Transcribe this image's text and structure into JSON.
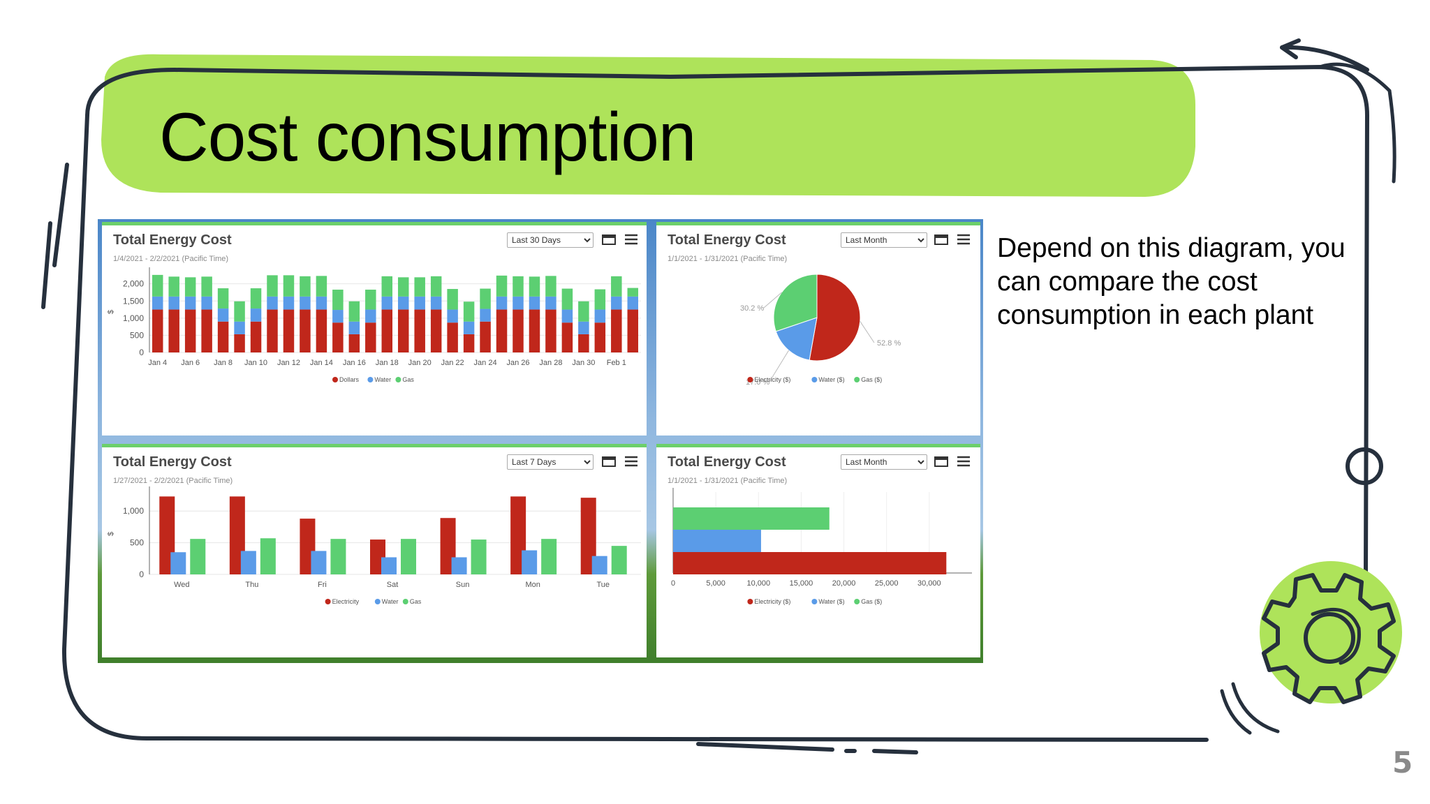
{
  "slide": {
    "title": "Cost consumption",
    "description": "Depend on this diagram, you can compare the cost consumption in each plant",
    "page_number": "5"
  },
  "colors": {
    "accent_green": "#aee35a",
    "outline": "#26303d",
    "electricity": "#c0271b",
    "water": "#5a9be8",
    "gas": "#5ccf72"
  },
  "panels": [
    {
      "title": "Total Energy Cost",
      "subtitle": "1/4/2021 - 2/2/2021 (Pacific Time)",
      "range": "Last 30 Days"
    },
    {
      "title": "Total Energy Cost",
      "subtitle": "1/1/2021 - 1/31/2021 (Pacific Time)",
      "range": "Last Month"
    },
    {
      "title": "Total Energy Cost",
      "subtitle": "1/27/2021 - 2/2/2021 (Pacific Time)",
      "range": "Last 7 Days"
    },
    {
      "title": "Total Energy Cost",
      "subtitle": "1/1/2021 - 1/31/2021 (Pacific Time)",
      "range": "Last Month"
    }
  ],
  "chart_data": [
    {
      "type": "bar",
      "stacked": true,
      "ylabel": "$",
      "ylim": [
        0,
        2400
      ],
      "yticks": [
        0,
        500,
        1000,
        1500,
        2000
      ],
      "ytick_labels": [
        "0",
        "500",
        "1,000",
        "1,500",
        "2,000"
      ],
      "xtick_labels": [
        "Jan 4",
        "Jan 6",
        "Jan 8",
        "Jan 10",
        "Jan 12",
        "Jan 14",
        "Jan 16",
        "Jan 18",
        "Jan 20",
        "Jan 22",
        "Jan 24",
        "Jan 26",
        "Jan 28",
        "Jan 30",
        "Feb 1"
      ],
      "legend": [
        "Dollars",
        "Water",
        "Gas"
      ],
      "series": [
        {
          "name": "Dollars",
          "values": [
            1250,
            1250,
            1250,
            1250,
            900,
            530,
            900,
            1250,
            1250,
            1250,
            1250,
            870,
            530,
            870,
            1250,
            1250,
            1250,
            1250,
            870,
            530,
            900,
            1250,
            1250,
            1250,
            1250,
            870,
            530,
            870,
            1250,
            1250
          ]
        },
        {
          "name": "Water",
          "values": [
            380,
            380,
            380,
            380,
            380,
            370,
            380,
            380,
            380,
            380,
            380,
            370,
            370,
            380,
            380,
            380,
            380,
            380,
            380,
            370,
            370,
            380,
            380,
            380,
            380,
            380,
            370,
            380,
            380,
            380
          ]
        },
        {
          "name": "Gas",
          "values": [
            630,
            580,
            560,
            580,
            590,
            590,
            590,
            620,
            620,
            590,
            600,
            590,
            590,
            580,
            590,
            560,
            560,
            590,
            600,
            580,
            590,
            610,
            590,
            580,
            600,
            610,
            590,
            590,
            590,
            250
          ]
        }
      ]
    },
    {
      "type": "pie",
      "legend": [
        "Electricity ($)",
        "Water ($)",
        "Gas ($)"
      ],
      "labels": [
        "Electricity ($)",
        "Water ($)",
        "Gas ($)"
      ],
      "values": [
        52.8,
        17.0,
        30.2
      ],
      "value_labels": [
        "52.8 %",
        "17.0 %",
        "30.2 %"
      ]
    },
    {
      "type": "bar",
      "ylabel": "$",
      "ylim": [
        0,
        1300
      ],
      "yticks": [
        0,
        500,
        1000
      ],
      "ytick_labels": [
        "0",
        "500",
        "1,000"
      ],
      "categories": [
        "Wed",
        "Thu",
        "Fri",
        "Sat",
        "Sun",
        "Mon",
        "Tue"
      ],
      "legend": [
        "Electricity",
        "Water",
        "Gas"
      ],
      "series": [
        {
          "name": "Electricity",
          "values": [
            1230,
            1230,
            880,
            550,
            890,
            1230,
            1210
          ]
        },
        {
          "name": "Water",
          "values": [
            350,
            370,
            370,
            270,
            270,
            380,
            290
          ]
        },
        {
          "name": "Gas",
          "values": [
            560,
            570,
            560,
            560,
            550,
            560,
            450
          ]
        }
      ]
    },
    {
      "type": "bar",
      "orientation": "horizontal",
      "xlim": [
        0,
        35000
      ],
      "xticks": [
        0,
        5000,
        10000,
        15000,
        20000,
        25000,
        30000
      ],
      "xtick_labels": [
        "0",
        "5,000",
        "10,000",
        "15,000",
        "20,000",
        "25,000",
        "30,000"
      ],
      "legend": [
        "Electricity ($)",
        "Water ($)",
        "Gas ($)"
      ],
      "series": [
        {
          "name": "Electricity ($)",
          "values": [
            32000
          ]
        },
        {
          "name": "Water ($)",
          "values": [
            10300
          ]
        },
        {
          "name": "Gas ($)",
          "values": [
            18300
          ]
        }
      ]
    }
  ]
}
